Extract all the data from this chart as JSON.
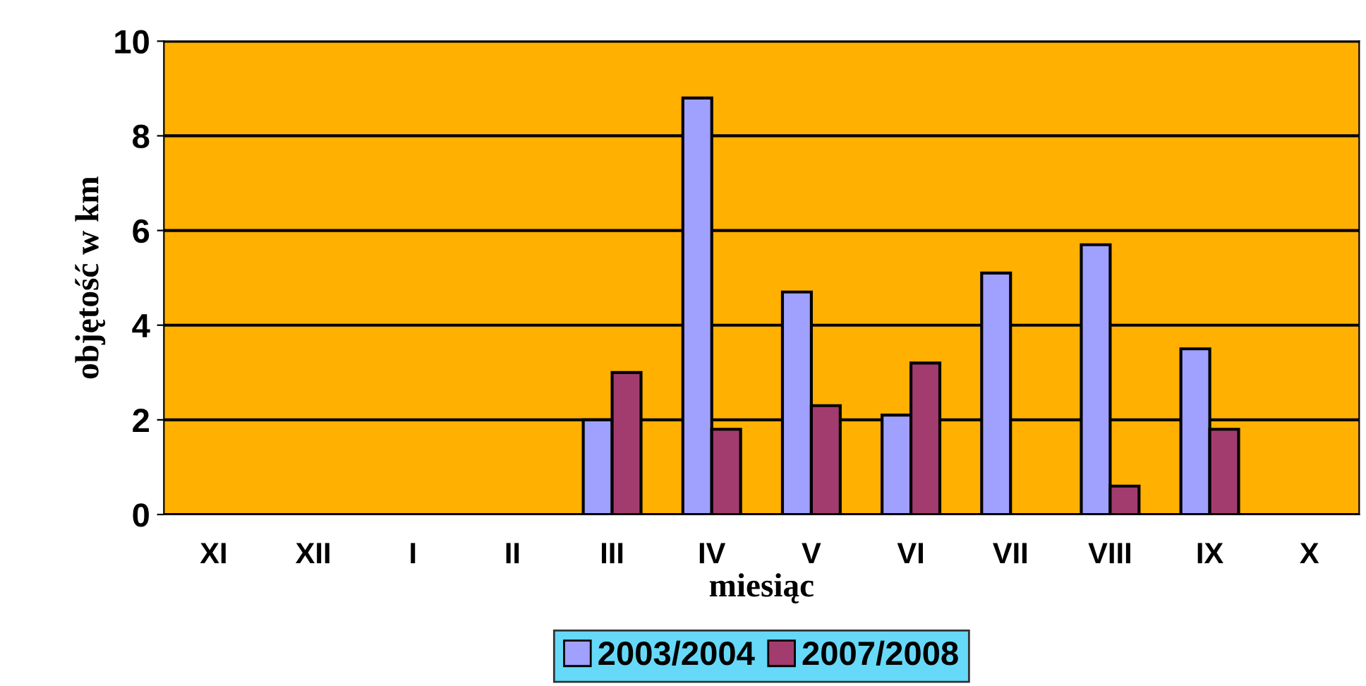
{
  "chart_data": {
    "type": "bar",
    "xlabel": "miesiąc",
    "ylabel": "objętość w km",
    "categories": [
      "XI",
      "XII",
      "I",
      "II",
      "III",
      "IV",
      "V",
      "VI",
      "VII",
      "VIII",
      "IX",
      "X"
    ],
    "series": [
      {
        "name": "2003/2004",
        "color": "#a0a0ff",
        "values": [
          null,
          null,
          null,
          null,
          2.0,
          8.8,
          4.7,
          2.1,
          5.1,
          5.7,
          3.5,
          null
        ]
      },
      {
        "name": "2007/2008",
        "color": "#a33c6e",
        "values": [
          null,
          null,
          null,
          null,
          3.0,
          1.8,
          2.3,
          3.2,
          null,
          0.6,
          1.8,
          null
        ]
      }
    ],
    "ylim": [
      0,
      10
    ],
    "yticks": [
      0,
      2,
      4,
      6,
      8,
      10
    ],
    "grid": "y",
    "legend": "bottom"
  }
}
